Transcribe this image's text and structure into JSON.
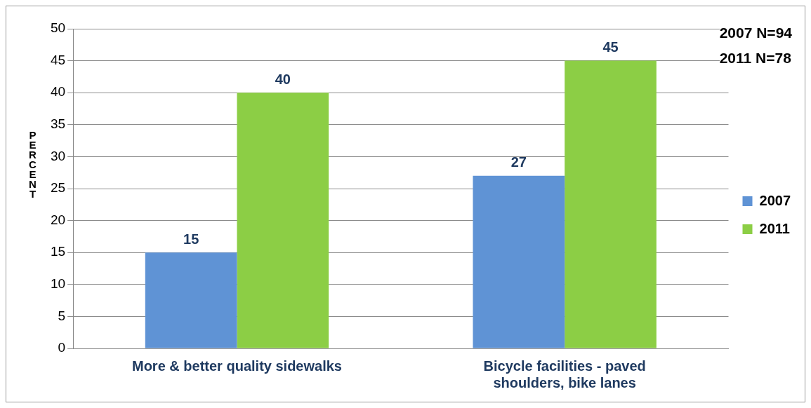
{
  "chart_data": {
    "type": "bar",
    "ylabel": "PERCENT",
    "categories": [
      "More & better quality sidewalks",
      "Bicycle facilities - paved shoulders, bike lanes"
    ],
    "series": [
      {
        "name": "2007",
        "color": "#5f93d5",
        "values": [
          15,
          27
        ]
      },
      {
        "name": "2011",
        "color": "#8cce45",
        "values": [
          40,
          45
        ]
      }
    ],
    "ylim": [
      0,
      50
    ],
    "yticks": [
      0,
      5,
      10,
      15,
      20,
      25,
      30,
      35,
      40,
      45,
      50
    ],
    "grid": "y",
    "legend": "right",
    "data_labels": true,
    "annotations": [
      "2007 N=94",
      "2011 N=78"
    ]
  }
}
